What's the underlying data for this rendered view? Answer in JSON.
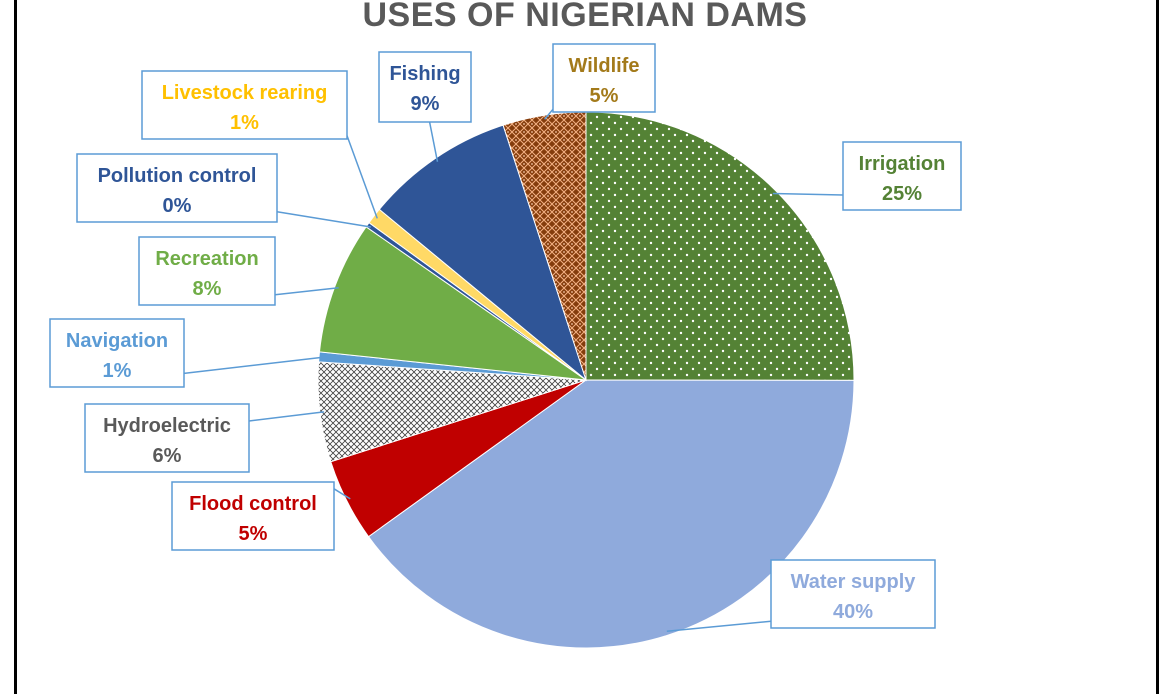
{
  "chart_data": {
    "type": "pie",
    "title": "USES OF NIGERIAN DAMS",
    "slices": [
      {
        "label": "Irrigation",
        "value": 25,
        "display": "25%",
        "color": "#548235",
        "label_color": "#548235",
        "pattern": "dots"
      },
      {
        "label": "Water supply",
        "value": 40,
        "display": "40%",
        "color": "#8FAADC",
        "label_color": "#8FAADC",
        "pattern": "solid"
      },
      {
        "label": "Flood control",
        "value": 5,
        "display": "5%",
        "color": "#C00000",
        "label_color": "#C00000",
        "pattern": "solid"
      },
      {
        "label": "Hydroelectric",
        "value": 6,
        "display": "6%",
        "color": "#7F7F7F",
        "label_color": "#595959",
        "pattern": "hatch"
      },
      {
        "label": "Navigation",
        "value": 0.6,
        "display": "1%",
        "color": "#5B9BD5",
        "label_color": "#5B9BD5",
        "pattern": "solid"
      },
      {
        "label": "Recreation",
        "value": 8,
        "display": "8%",
        "color": "#70AD47",
        "label_color": "#70AD47",
        "pattern": "solid"
      },
      {
        "label": "Pollution control",
        "value": 0.3,
        "display": "0%",
        "color": "#2F5597",
        "label_color": "#2F5597",
        "pattern": "solid"
      },
      {
        "label": "Livestock rearing",
        "value": 1,
        "display": "1%",
        "color": "#FFD966",
        "label_color": "#FFC000",
        "pattern": "solid"
      },
      {
        "label": "Fishing",
        "value": 9,
        "display": "9%",
        "color": "#2F5597",
        "label_color": "#2F5597",
        "pattern": "solid"
      },
      {
        "label": "Wildlife",
        "value": 5,
        "display": "5%",
        "color": "#843C0C",
        "label_color": "#A37A1A",
        "pattern": "weave"
      }
    ],
    "legend": "none",
    "label_border_color": "#5B9BD5"
  }
}
